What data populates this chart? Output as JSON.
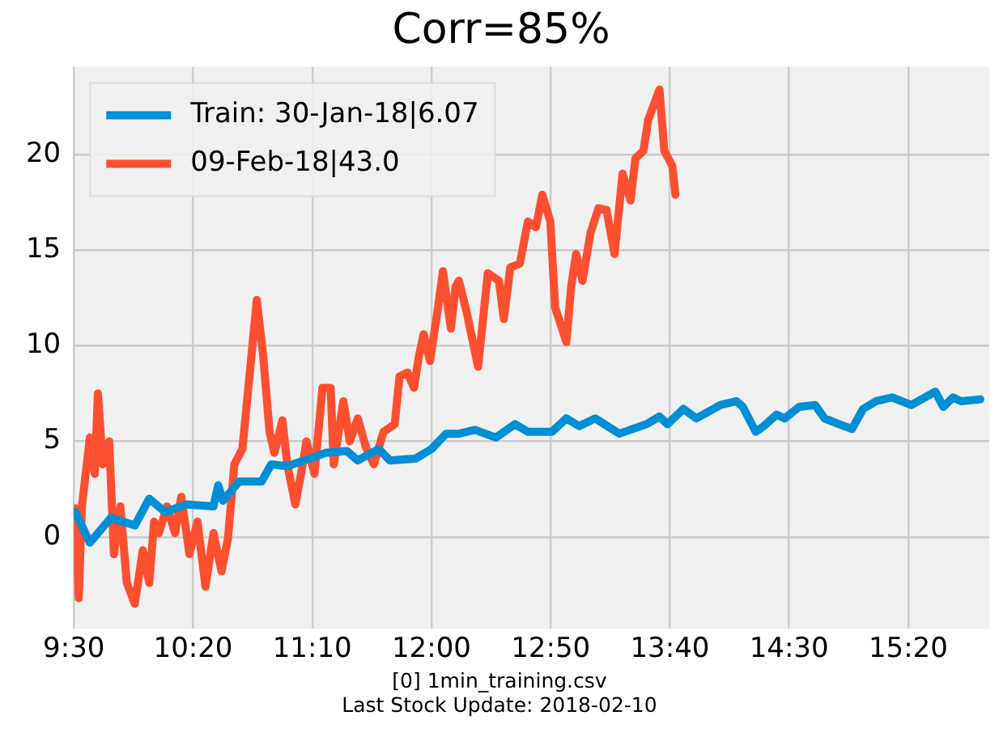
{
  "chart_data": {
    "type": "line",
    "title": "Corr=85%",
    "annotations": [
      "[0] 1min_training.csv",
      "Last Stock Update: 2018-02-10"
    ],
    "xlim": [
      9.5,
      15.9
    ],
    "xticks": [
      {
        "value": 9.5,
        "label": "9:30"
      },
      {
        "value": 10.333333,
        "label": "10:20"
      },
      {
        "value": 11.166667,
        "label": "11:10"
      },
      {
        "value": 12,
        "label": "12:00"
      },
      {
        "value": 12.833333,
        "label": "12:50"
      },
      {
        "value": 13.666667,
        "label": "13:40"
      },
      {
        "value": 14.5,
        "label": "14:30"
      },
      {
        "value": 15.333333,
        "label": "15:20"
      }
    ],
    "ylim": [
      -4.8,
      24.6
    ],
    "yticks": [
      0,
      5,
      10,
      15,
      20
    ],
    "grid": true,
    "legend": "top left",
    "marker": "none",
    "line_style": "solid",
    "series": [
      {
        "name": "Train: 30-Jan-18|6.07",
        "color": "#008fd5",
        "x": [
          9.511,
          9.612,
          9.758,
          9.926,
          10.027,
          10.139,
          10.285,
          10.476,
          10.509,
          10.543,
          10.655,
          10.812,
          10.88,
          10.992,
          11.149,
          11.261,
          11.407,
          11.485,
          11.631,
          11.71,
          11.889,
          12.001,
          12.102,
          12.192,
          12.304,
          12.45,
          12.584,
          12.674,
          12.842,
          12.943,
          13.033,
          13.145,
          13.313,
          13.504,
          13.594,
          13.65,
          13.762,
          13.852,
          14.02,
          14.132,
          14.177,
          14.267,
          14.323,
          14.413,
          14.469,
          14.57,
          14.682,
          14.749,
          14.85,
          14.94,
          15.018,
          15.108,
          15.22,
          15.355,
          15.523,
          15.579,
          15.646,
          15.703,
          15.837
        ],
        "values": [
          1.3,
          -0.3,
          1.0,
          0.6,
          2.0,
          1.3,
          1.7,
          1.6,
          2.7,
          1.9,
          2.9,
          2.9,
          3.8,
          3.7,
          4.1,
          4.4,
          4.5,
          4.0,
          4.6,
          4.0,
          4.1,
          4.6,
          5.4,
          5.4,
          5.6,
          5.2,
          5.9,
          5.5,
          5.5,
          6.2,
          5.8,
          6.2,
          5.4,
          5.9,
          6.3,
          5.9,
          6.7,
          6.2,
          6.9,
          7.1,
          6.8,
          5.5,
          5.8,
          6.4,
          6.2,
          6.8,
          6.9,
          6.2,
          5.9,
          5.65,
          6.7,
          7.1,
          7.3,
          6.9,
          7.6,
          6.8,
          7.3,
          7.1,
          7.2
        ]
      },
      {
        "name": "09-Feb-18|43.0",
        "color": "#fc4f30",
        "x": [
          9.511,
          9.534,
          9.556,
          9.612,
          9.646,
          9.668,
          9.702,
          9.747,
          9.78,
          9.825,
          9.87,
          9.926,
          9.982,
          10.027,
          10.061,
          10.094,
          10.151,
          10.207,
          10.251,
          10.308,
          10.364,
          10.42,
          10.476,
          10.532,
          10.577,
          10.622,
          10.678,
          10.734,
          10.779,
          10.823,
          10.868,
          10.902,
          10.958,
          10.992,
          11.048,
          11.093,
          11.126,
          11.182,
          11.238,
          11.295,
          11.317,
          11.384,
          11.429,
          11.485,
          11.541,
          11.597,
          11.665,
          11.743,
          11.777,
          11.833,
          11.878,
          11.911,
          11.945,
          11.99,
          12.046,
          12.08,
          12.136,
          12.169,
          12.192,
          12.248,
          12.326,
          12.394,
          12.472,
          12.506,
          12.551,
          12.618,
          12.674,
          12.73,
          12.775,
          12.831,
          12.865,
          12.943,
          12.977,
          13.011,
          13.056,
          13.112,
          13.168,
          13.224,
          13.28,
          13.336,
          13.392,
          13.426,
          13.482,
          13.515,
          13.594,
          13.628,
          13.684,
          13.706
        ],
        "values": [
          1.5,
          -3.2,
          1.6,
          5.2,
          3.3,
          7.5,
          3.8,
          5.0,
          -0.9,
          1.6,
          -2.4,
          -3.5,
          -0.7,
          -2.4,
          0.8,
          0.2,
          1.6,
          0.2,
          2.1,
          -0.9,
          0.8,
          -2.6,
          0.2,
          -1.8,
          -0.1,
          3.8,
          4.6,
          8.9,
          12.4,
          9.5,
          5.5,
          4.4,
          6.1,
          3.8,
          1.7,
          3.5,
          5.0,
          3.3,
          7.8,
          7.8,
          3.8,
          7.1,
          5.0,
          6.2,
          4.7,
          3.8,
          5.5,
          5.9,
          8.4,
          8.6,
          7.8,
          9.4,
          10.6,
          9.2,
          12.0,
          13.9,
          10.9,
          13.1,
          13.4,
          11.7,
          8.9,
          13.8,
          13.4,
          11.4,
          14.1,
          14.3,
          16.5,
          16.2,
          17.9,
          16.5,
          12.0,
          10.2,
          13.1,
          14.8,
          13.4,
          15.9,
          17.2,
          17.1,
          14.8,
          19.0,
          17.6,
          19.8,
          20.2,
          21.8,
          23.4,
          20.2,
          19.4,
          17.9
        ]
      }
    ]
  }
}
